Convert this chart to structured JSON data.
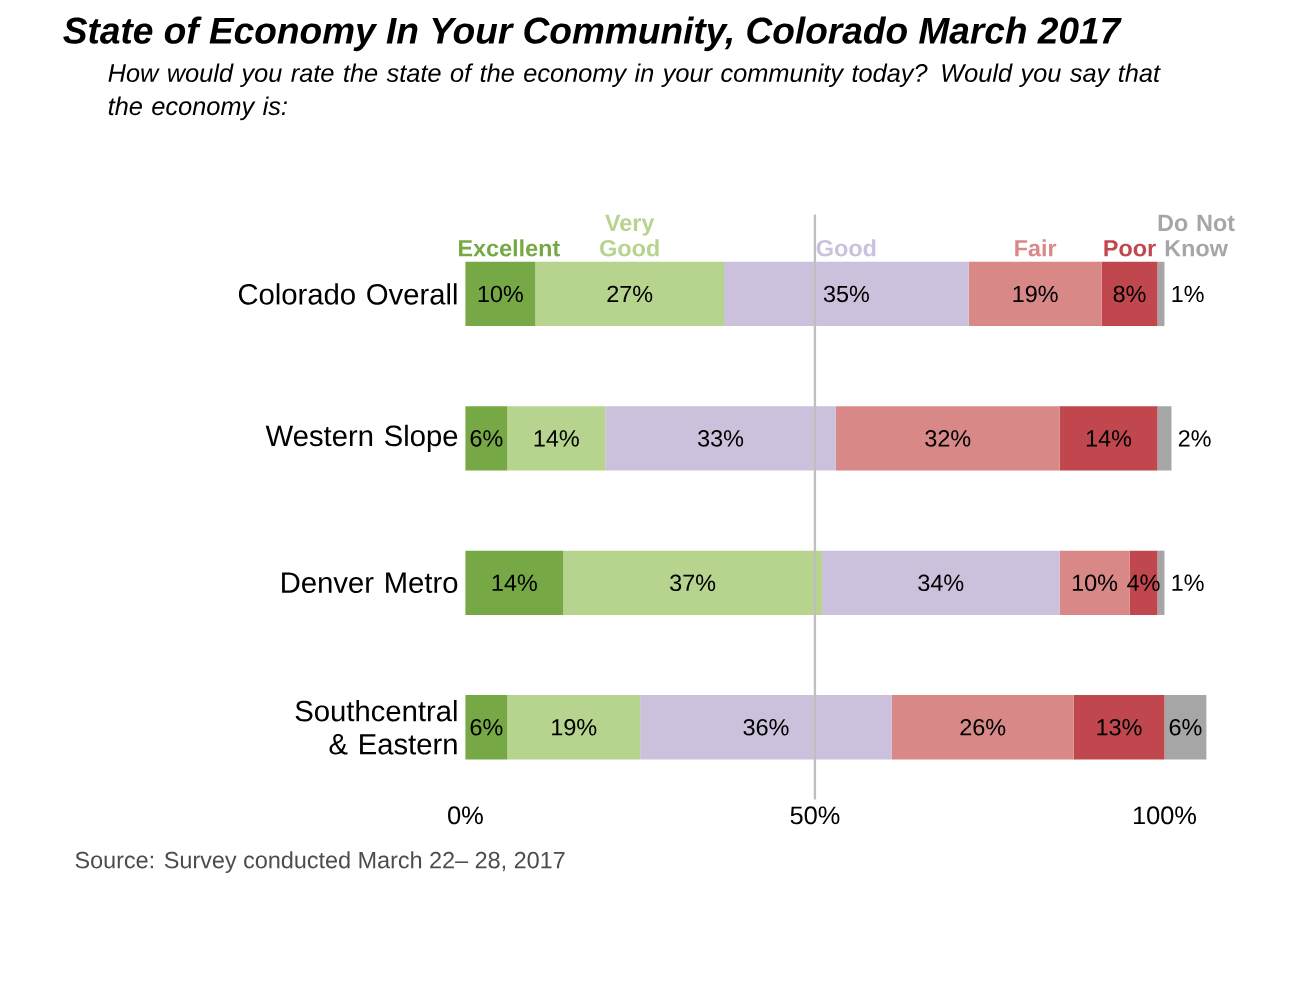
{
  "chart_data": {
    "type": "bar",
    "orientation": "horizontal",
    "stacked": true,
    "title": "State of Economy In Your Community, Colorado March 2017",
    "subtitle": "How would you rate the state of the economy in your community today?  Would you say that the economy is:",
    "categories": [
      "Colorado Overall",
      "Western Slope",
      "Denver Metro",
      "Southcentral & Eastern"
    ],
    "series": [
      {
        "name": "Excellent",
        "color": "#77a846",
        "values": [
          10,
          6,
          14,
          6
        ],
        "value_labels": [
          "10%",
          "6%",
          "14%",
          "6%"
        ]
      },
      {
        "name": "Very Good",
        "color": "#b6d48d",
        "values": [
          27,
          14,
          37,
          19
        ],
        "value_labels": [
          "27%",
          "14%",
          "37%",
          "19%"
        ]
      },
      {
        "name": "Good",
        "color": "#ccc1dc",
        "values": [
          35,
          33,
          34,
          36
        ],
        "value_labels": [
          "35%",
          "33%",
          "34%",
          "36%"
        ]
      },
      {
        "name": "Fair",
        "color": "#d98888",
        "values": [
          19,
          32,
          10,
          26
        ],
        "value_labels": [
          "19%",
          "32%",
          "10%",
          "26%"
        ]
      },
      {
        "name": "Poor",
        "color": "#c0474d",
        "values": [
          8,
          14,
          4,
          13
        ],
        "value_labels": [
          "8%",
          "14%",
          "4%",
          "13%"
        ]
      },
      {
        "name": "Do Not Know",
        "color": "#a6a6a6",
        "values": [
          1,
          2,
          1,
          6
        ],
        "value_labels": [
          "1%",
          "2%",
          "1%",
          "6%"
        ]
      }
    ],
    "xlim": [
      0,
      106
    ],
    "xticks": [
      {
        "value": 0,
        "label": "0%"
      },
      {
        "value": 50,
        "label": "50%"
      },
      {
        "value": 100,
        "label": "100%"
      }
    ],
    "ref_lines": [
      {
        "axis": "x",
        "value": 50,
        "color": "#bfbfbf"
      }
    ],
    "legend": "top",
    "grid": false,
    "annotations": [
      "Source: Survey conducted March 22– 28, 2017"
    ]
  }
}
